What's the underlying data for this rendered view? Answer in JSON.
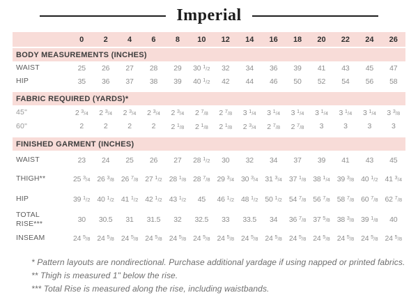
{
  "title": "Imperial",
  "colors": {
    "band_pink": "#f8dcd8",
    "title_ink": "#1d1d1d",
    "heading_text": "#3d3d3d",
    "data_text": "#8d8d8d",
    "label_text": "#5c5c5c"
  },
  "chart_data": {
    "type": "table",
    "title": "Imperial",
    "sizes": [
      "0",
      "2",
      "4",
      "6",
      "8",
      "10",
      "12",
      "14",
      "16",
      "18",
      "20",
      "22",
      "24",
      "26"
    ],
    "sections": [
      {
        "heading": "BODY MEASUREMENTS (INCHES)",
        "rows": [
          {
            "label": "WAIST",
            "values": [
              "25",
              "26",
              "27",
              "28",
              "29",
              "30 1/2",
              "32",
              "34",
              "36",
              "39",
              "41",
              "43",
              "45",
              "47"
            ]
          },
          {
            "label": "HIP",
            "values": [
              "35",
              "36",
              "37",
              "38",
              "39",
              "40 1/2",
              "42",
              "44",
              "46",
              "50",
              "52",
              "54",
              "56",
              "58"
            ]
          }
        ]
      },
      {
        "heading": "FABRIC REQUIRED (YARDS)*",
        "rows": [
          {
            "label": "45\"",
            "values": [
              "2 3/4",
              "2 3/4",
              "2 3/4",
              "2 3/4",
              "2 3/4",
              "2 7/8",
              "2 7/8",
              "3 1/4",
              "3 1/4",
              "3 1/4",
              "3 1/4",
              "3 1/4",
              "3 1/4",
              "3 3/8"
            ]
          },
          {
            "label": "60\"",
            "values": [
              "2",
              "2",
              "2",
              "2",
              "2 1/8",
              "2 1/8",
              "2 1/8",
              "2 3/4",
              "2 7/8",
              "2 7/8",
              "3",
              "3",
              "3",
              "3"
            ]
          }
        ]
      },
      {
        "heading": "FINISHED GARMENT (INCHES)",
        "rows": [
          {
            "label": "WAIST",
            "values": [
              "23",
              "24",
              "25",
              "26",
              "27",
              "28 1/2",
              "30",
              "32",
              "34",
              "37",
              "39",
              "41",
              "43",
              "45"
            ]
          },
          {
            "label": "THIGH**",
            "values": [
              "25 3/4",
              "26 3/8",
              "26 7/8",
              "27 1/2",
              "28 1/8",
              "28 7/8",
              "29 3/4",
              "30 3/4",
              "31 3/4",
              "37 1/8",
              "38 1/4",
              "39 3/8",
              "40 1/2",
              "41 3/4"
            ]
          },
          {
            "label": "HIP",
            "values": [
              "39 1/2",
              "40 1/2",
              "41 1/2",
              "42 1/2",
              "43 1/2",
              "45",
              "46 1/2",
              "48 1/2",
              "50 1/2",
              "54 7/8",
              "56 7/8",
              "58 7/8",
              "60 7/8",
              "62 7/8"
            ]
          },
          {
            "label": "TOTAL RISE***",
            "values": [
              "30",
              "30.5",
              "31",
              "31.5",
              "32",
              "32.5",
              "33",
              "33.5",
              "34",
              "36 7/8",
              "37 5/8",
              "38 3/8",
              "39 1/8",
              "40"
            ]
          },
          {
            "label": "INSEAM",
            "values": [
              "24 5/8",
              "24 5/8",
              "24 5/8",
              "24 5/8",
              "24 5/8",
              "24 5/8",
              "24 5/8",
              "24 5/8",
              "24 5/8",
              "24 5/8",
              "24 5/8",
              "24 5/8",
              "24 5/8",
              "24 5/8"
            ]
          }
        ]
      }
    ]
  },
  "footnotes": [
    "* Pattern layouts are nondirectional. Purchase additional yardage if using napped or printed fabrics.",
    "** Thigh is measured 1\" below the rise.",
    "*** Total Rise is measured along the rise, including waistbands."
  ]
}
